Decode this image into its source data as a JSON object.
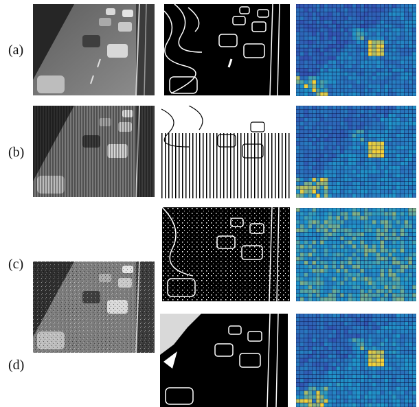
{
  "figure": {
    "rows": [
      {
        "id": "a",
        "label": "(a)"
      },
      {
        "id": "b",
        "label": "(b)"
      },
      {
        "id": "c",
        "label": "(c)"
      },
      {
        "id": "d",
        "label": "(d)"
      }
    ]
  },
  "colors": {
    "heatmap_background": "#2b2a7e",
    "heatmap_grid": "#0b0b3a",
    "heatmap_low": "#3a3aa8",
    "heatmap_mid": "#1f97c9",
    "heatmap_high": "#f3d23a"
  }
}
